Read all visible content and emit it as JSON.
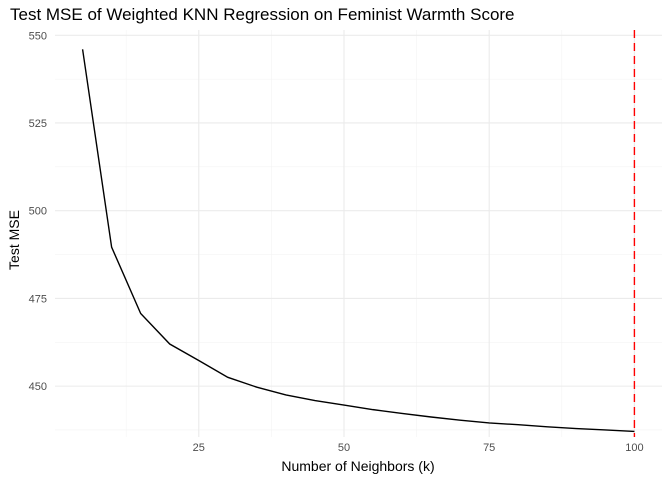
{
  "chart_data": {
    "type": "line",
    "title": "Test MSE of Weighted KNN Regression on Feminist Warmth Score",
    "xlabel": "Number of Neighbors (k)",
    "ylabel": "Test MSE",
    "xlim": [
      0.25,
      104.75
    ],
    "ylim": [
      435.5,
      551.5
    ],
    "x_ticks": [
      25,
      50,
      75,
      100
    ],
    "y_ticks": [
      450,
      475,
      500,
      525,
      550
    ],
    "grid": true,
    "legend": "none",
    "series": [
      {
        "color": "#000000",
        "x": [
          5,
          10,
          15,
          20,
          25,
          30,
          35,
          40,
          45,
          50,
          55,
          60,
          65,
          70,
          75,
          80,
          85,
          90,
          95,
          100
        ],
        "y": [
          546,
          489.6,
          470.7,
          462.0,
          457.3,
          452.5,
          449.7,
          447.5,
          445.9,
          444.6,
          443.3,
          442.2,
          441.2,
          440.3,
          439.5,
          439.0,
          438.4,
          437.9,
          437.5,
          437.1
        ]
      }
    ],
    "vline": {
      "x": 100,
      "color": "#ff0000",
      "style": "dashed"
    }
  }
}
